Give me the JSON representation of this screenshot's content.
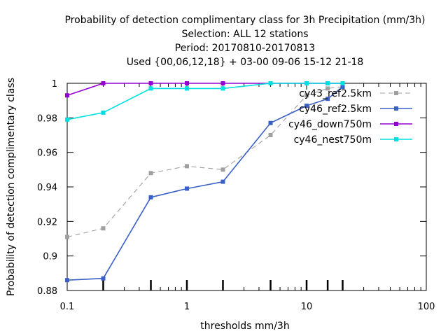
{
  "chart_data": {
    "type": "line",
    "title_lines": [
      "Probability of detection complimentary class  for 3h Precipitation (mm/3h)",
      "Selection: ALL     12 stations",
      "Period: 20170810-20170813",
      "Used {00,06,12,18} + 03-00 09-06 15-12 21-18"
    ],
    "xlabel": "thresholds mm/3h",
    "ylabel": "Probability of detection complimentary class",
    "x_scale": "log",
    "xlim": [
      0.1,
      100
    ],
    "ylim": [
      0.88,
      1.0
    ],
    "x_ticks": [
      0.1,
      1,
      10,
      100
    ],
    "x_tick_labels": [
      "0.1",
      "1",
      "10",
      "100"
    ],
    "y_ticks": [
      0.88,
      0.9,
      0.92,
      0.94,
      0.96,
      0.98,
      1.0
    ],
    "y_tick_labels": [
      "0.88",
      "0.9",
      "0.92",
      "0.94",
      "0.96",
      "0.98",
      "1"
    ],
    "threshold_marks": [
      0.2,
      0.5,
      1,
      2,
      5,
      10,
      15,
      20
    ],
    "grid": false,
    "legend_position": "top-right",
    "x": [
      0.1,
      0.2,
      0.5,
      1,
      2,
      5,
      10,
      15,
      20
    ],
    "series": [
      {
        "name": "cy43_ref2.5km",
        "color": "#a0a0a0",
        "dashed": true,
        "values": [
          0.911,
          0.916,
          0.948,
          0.952,
          0.95,
          0.97,
          0.993,
          0.997,
          0.998
        ]
      },
      {
        "name": "cy46_ref2.5km",
        "color": "#3a60c8",
        "dashed": false,
        "values": [
          0.886,
          0.887,
          0.934,
          0.939,
          0.943,
          0.977,
          0.987,
          0.991,
          0.998
        ]
      },
      {
        "name": "cy46_down750m",
        "color": "#9400d3",
        "dashed": false,
        "values": [
          0.993,
          1.0,
          1.0,
          1.0,
          1.0,
          1.0,
          1.0,
          1.0,
          1.0
        ]
      },
      {
        "name": "cy46_nest750m",
        "color": "#00e0e0",
        "dashed": false,
        "values": [
          0.979,
          0.983,
          0.997,
          0.997,
          0.997,
          1.0,
          1.0,
          1.0,
          1.0
        ]
      }
    ]
  }
}
